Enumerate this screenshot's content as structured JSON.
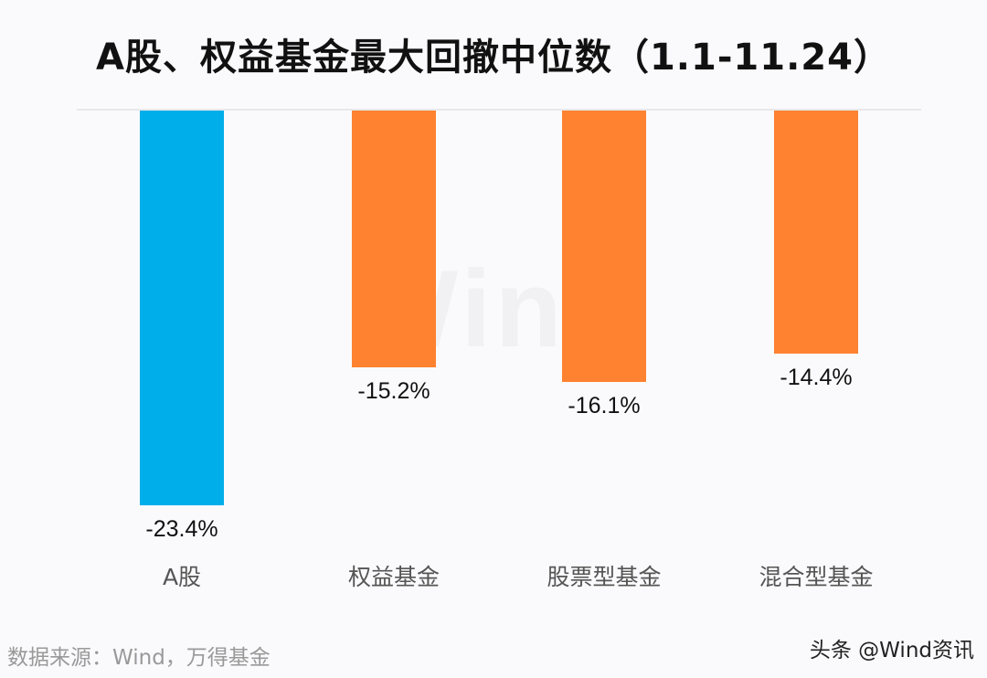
{
  "title": "A股、权益基金最大回撤中位数（1.1-11.24）",
  "watermark": "Wind",
  "chart_data": {
    "type": "bar",
    "title": "A股、权益基金最大回撤中位数（1.1-11.24）",
    "categories": [
      "A股",
      "权益基金",
      "股票型基金",
      "混合型基金"
    ],
    "values": [
      -23.4,
      -15.2,
      -16.1,
      -14.4
    ],
    "value_labels": [
      "-23.4%",
      "-15.2%",
      "-16.1%",
      "-14.4%"
    ],
    "colors": [
      "#00aeea",
      "#fe8230",
      "#fe8230",
      "#fe8230"
    ],
    "xlabel": "",
    "ylabel": "",
    "unit": "%",
    "grid": false,
    "legend": null,
    "ylim": [
      -25,
      0
    ]
  },
  "footer": {
    "source": "数据来源：Wind，万得基金",
    "credit": "头条 @Wind资讯"
  }
}
